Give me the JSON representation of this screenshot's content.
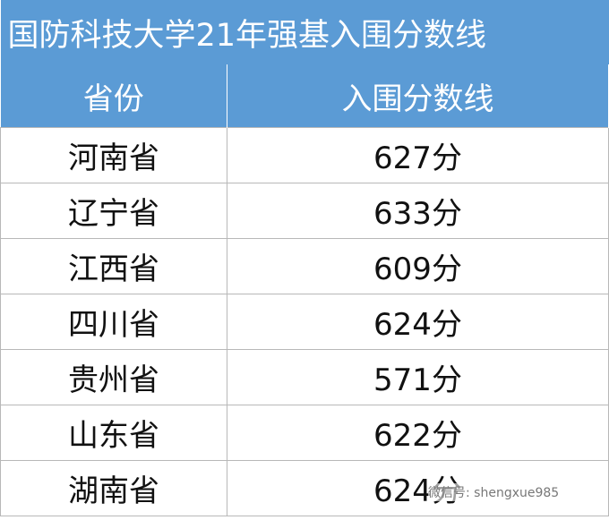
{
  "table": {
    "title": "国防科技大学21年强基入围分数线",
    "header": [
      "省份",
      "入围分数线"
    ],
    "rows": [
      [
        "河南省",
        "627分"
      ],
      [
        "辽宁省",
        "633分"
      ],
      [
        "江西省",
        "609分"
      ],
      [
        "四川省",
        "624分"
      ],
      [
        "贵州省",
        "571分"
      ],
      [
        "山东省",
        "622分"
      ],
      [
        "湖南省",
        "624分"
      ]
    ]
  },
  "watermark": "微信号: shengxue985"
}
